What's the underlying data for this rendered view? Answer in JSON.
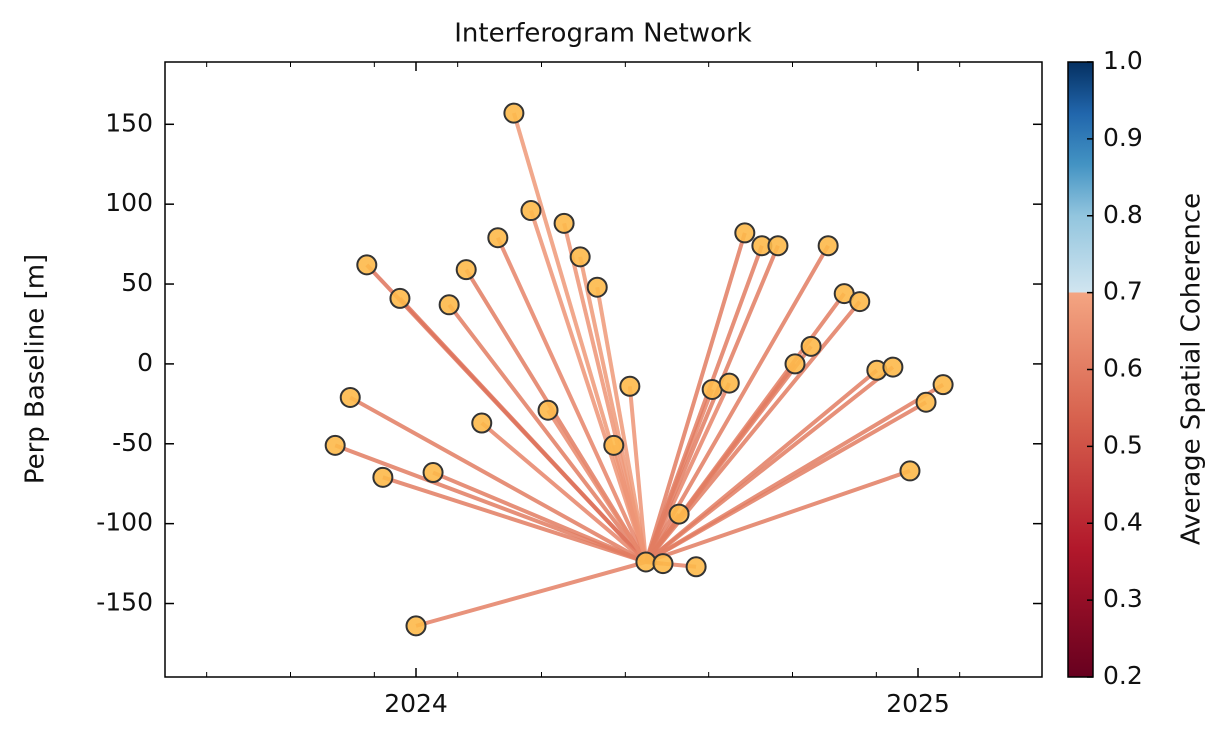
{
  "chart_data": {
    "type": "network",
    "title": "Interferogram Network",
    "ylabel": "Perp Baseline [m]",
    "colorbar_label": "Average Spatial Coherence",
    "x": [
      2024.195,
      2024.229,
      2024.295,
      2024.327,
      2024.361,
      2024.163,
      2024.1,
      2024.066,
      2023.902,
      2023.968,
      2023.869,
      2023.839,
      2023.934,
      2024.034,
      2024.0,
      2024.131,
      2024.263,
      2024.426,
      2024.394,
      2024.458,
      2024.492,
      2024.558,
      2024.524,
      2024.59,
      2024.624,
      2024.655,
      2024.689,
      2024.721,
      2024.755,
      2024.787,
      2024.821,
      2024.853,
      2024.884,
      2024.918,
      2024.95,
      2024.984,
      2025.016,
      2025.05
    ],
    "values": [
      157,
      96,
      88,
      67,
      48,
      79,
      59,
      37,
      62,
      41,
      -21,
      -51,
      -71,
      -68,
      -164,
      -37,
      -29,
      -14,
      -51,
      -124,
      -125,
      -127,
      -94,
      -16,
      -12,
      82,
      74,
      74,
      0,
      11,
      74,
      44,
      39,
      -4,
      -2,
      -67,
      -24,
      -13
    ],
    "reference": 19,
    "coherence": [
      0.67,
      0.66,
      0.66,
      0.67,
      0.67,
      0.62,
      0.6,
      0.6,
      0.58,
      0.58,
      0.6,
      0.6,
      0.6,
      0.6,
      0.61,
      0.62,
      0.63,
      0.66,
      0.66,
      null,
      0.62,
      0.62,
      0.62,
      0.62,
      0.62,
      0.6,
      0.6,
      0.6,
      0.6,
      0.6,
      0.6,
      0.6,
      0.6,
      0.6,
      0.6,
      0.6,
      0.6,
      0.6
    ],
    "point_color": "#fdb94a",
    "colormap": [
      {
        "value": 0.2,
        "color": "#67001f"
      },
      {
        "value": 0.367,
        "color": "#b2182b"
      },
      {
        "value": 0.533,
        "color": "#d6604d"
      },
      {
        "value": 0.7,
        "color": "#f4a582"
      },
      {
        "value": 0.7,
        "color": "#d1e5f0"
      },
      {
        "value": 0.8,
        "color": "#92c5de"
      },
      {
        "value": 0.867,
        "color": "#4393c3"
      },
      {
        "value": 0.933,
        "color": "#2166ac"
      },
      {
        "value": 1.0,
        "color": "#053061"
      }
    ],
    "xlim": [
      2023.5,
      2025.247
    ],
    "xticks": [
      2024,
      2025
    ],
    "xminorticks": [
      2023.583,
      2023.75,
      2023.917,
      2024.083,
      2024.25,
      2024.417,
      2024.583,
      2024.75,
      2024.917,
      2025.083
    ],
    "ylim": [
      -196,
      189
    ],
    "yticks": [
      -150,
      -100,
      -50,
      0,
      50,
      100,
      150
    ],
    "clim": [
      0.2,
      1.0
    ],
    "cticks": [
      {
        "value": 0.2,
        "label": "0.2"
      },
      {
        "value": 0.3,
        "label": "0.3"
      },
      {
        "value": 0.4,
        "label": "0.4"
      },
      {
        "value": 0.5,
        "label": "0.5"
      },
      {
        "value": 0.6,
        "label": "0.6"
      },
      {
        "value": 0.7,
        "label": "0.7"
      },
      {
        "value": 0.8,
        "label": "0.8"
      },
      {
        "value": 0.9,
        "label": "0.9"
      },
      {
        "value": 1.0,
        "label": "1.0"
      }
    ]
  }
}
